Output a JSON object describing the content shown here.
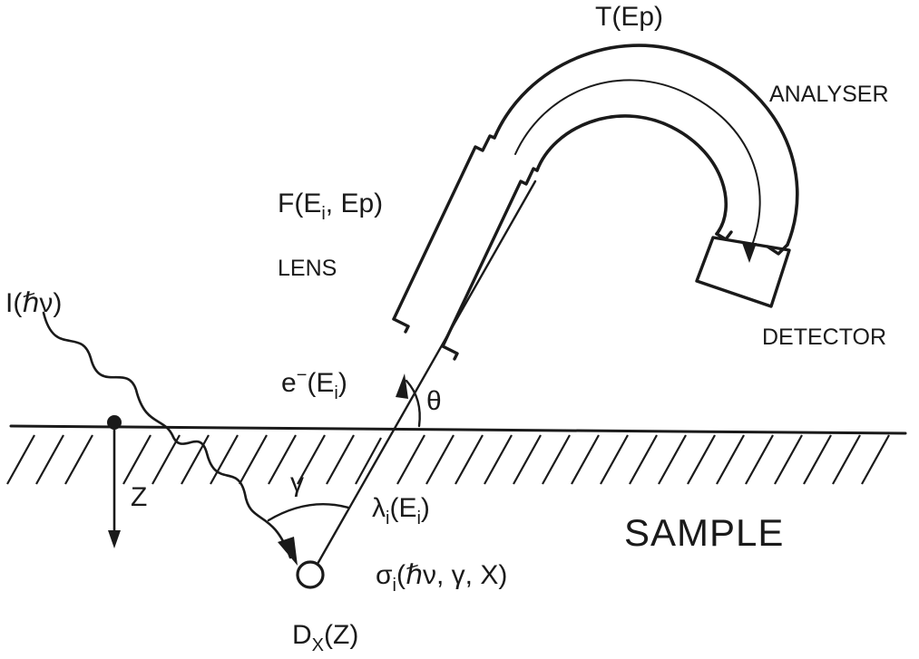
{
  "labels": {
    "transmission": "T(Ep)",
    "analyser": "ANALYSER",
    "lens_function": "F(E",
    "lens_function_sub": "i",
    "lens_function_tail": ", Ep)",
    "lens": "LENS",
    "detector": "DETECTOR",
    "photon_flux": "I(ℏν)",
    "electron": "e",
    "electron_sup": "−",
    "electron_energy": "(E",
    "electron_energy_sub": "i",
    "electron_energy_tail": ")",
    "take_off_angle": "θ",
    "depth": "Z",
    "angle_gamma": "γ",
    "imfp": "λ",
    "imfp_sub": "i",
    "imfp_tail": "(E",
    "imfp_tail_sub": "i",
    "imfp_close": ")",
    "sample": "SAMPLE",
    "cross_section": "σ",
    "cross_section_sub": "i",
    "cross_section_tail": "(ℏν, γ, X)",
    "density": "D",
    "density_sub": "X",
    "density_tail": "(Z)"
  },
  "colors": {
    "ink": "#1a1a1a",
    "background": "#ffffff"
  }
}
